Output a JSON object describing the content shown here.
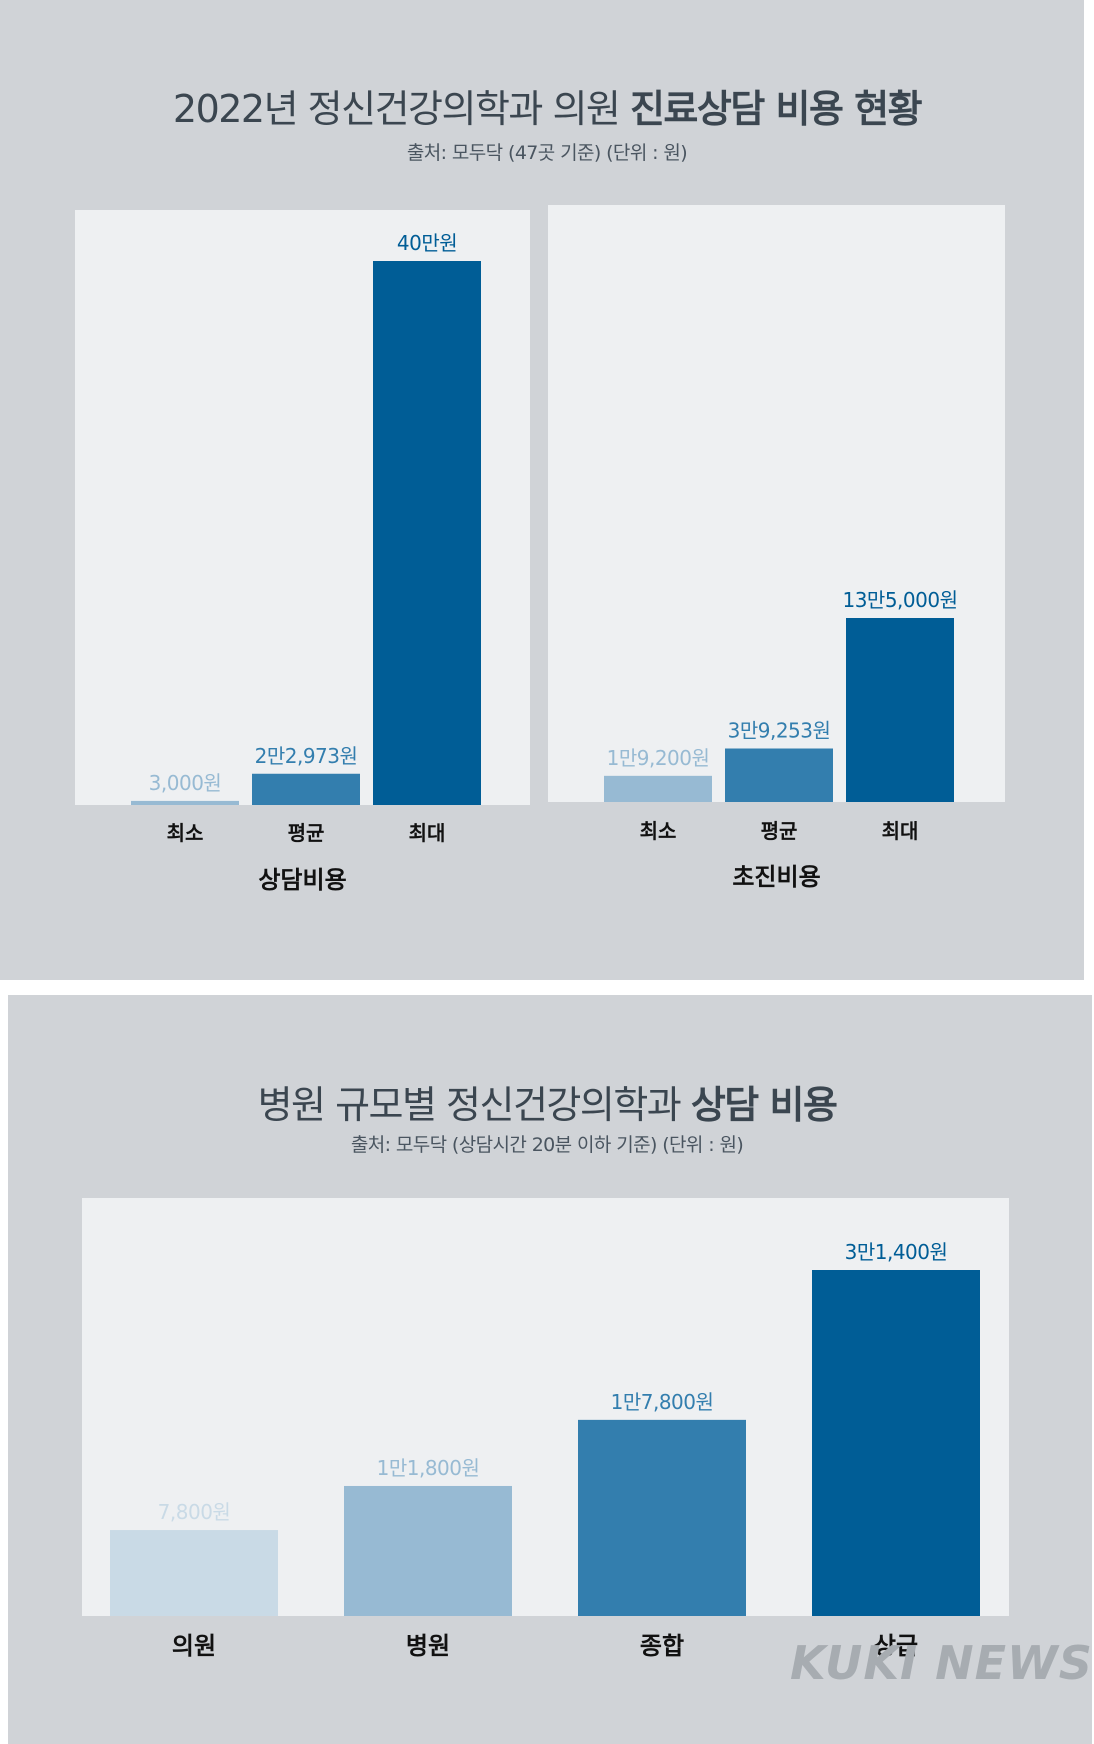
{
  "top_panel": {
    "title_prefix": "2022년 정신건강의학과 의원 ",
    "title_bold": "진료상담 비용 현황",
    "subtitle": "출처: 모두닥 (47곳 기준)  (단위 : 원)"
  },
  "bottom_panel": {
    "title_prefix": "병원 규모별 정신건강의학과 ",
    "title_bold": "상담 비용",
    "subtitle": "출처: 모두닥 (상담시간 20분 이하 기준)  (단위 : 원)"
  },
  "watermark": "KUKI NEWS",
  "colors": {
    "panel_bg": "#d0d3d7",
    "plot_bg": "#eef0f2",
    "shade_lightest": "#c9dae6",
    "shade_light": "#97bad3",
    "shade_mid": "#337eae",
    "shade_dark": "#005d96",
    "category_text": "#111111"
  },
  "chart_data": [
    {
      "type": "bar",
      "title": "상담비용",
      "categories": [
        "최소",
        "평균",
        "최대"
      ],
      "values": [
        3000,
        22973,
        400000
      ],
      "labels": [
        "3,000원",
        "2만2,973원",
        "40만원"
      ],
      "colors": [
        "#97bad3",
        "#337eae",
        "#005d96"
      ],
      "ylim": [
        0,
        400000
      ]
    },
    {
      "type": "bar",
      "title": "초진비용",
      "categories": [
        "최소",
        "평균",
        "최대"
      ],
      "values": [
        19200,
        39253,
        135000
      ],
      "labels": [
        "1만9,200원",
        "3만9,253원",
        "13만5,000원"
      ],
      "colors": [
        "#97bad3",
        "#337eae",
        "#005d96"
      ],
      "ylim": [
        0,
        135000
      ]
    },
    {
      "type": "bar",
      "categories": [
        "의원",
        "병원",
        "종합",
        "상급"
      ],
      "values": [
        7800,
        11800,
        17800,
        31400
      ],
      "labels": [
        "7,800원",
        "1만1,800원",
        "1만7,800원",
        "3만1,400원"
      ],
      "colors": [
        "#c9dae6",
        "#97bad3",
        "#337eae",
        "#005d96"
      ],
      "ylim": [
        0,
        31400
      ]
    }
  ]
}
